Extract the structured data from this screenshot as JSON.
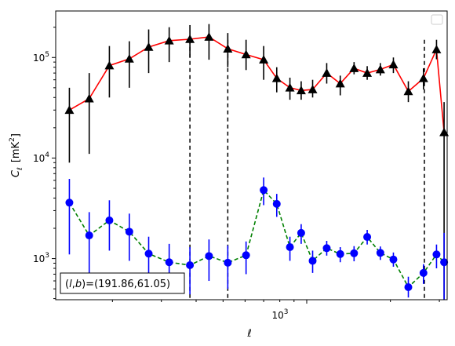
{
  "chart_data": {
    "type": "line",
    "xlabel": "ℓ",
    "ylabel_main": "C",
    "ylabel_sub": "ℓ",
    "ylabel_unit_pre": "[mK",
    "ylabel_unit_sup": "2",
    "ylabel_unit_post": "]",
    "xscale": "log",
    "yscale": "log",
    "xlim": [
      125,
      3200
    ],
    "ylim": [
      390,
      290000
    ],
    "x_major_ticks": [
      {
        "value": 1000,
        "base": "10",
        "exp": "3"
      }
    ],
    "y_major_ticks": [
      {
        "value": 1000,
        "base": "10",
        "exp": "3"
      },
      {
        "value": 10000,
        "base": "10",
        "exp": "4"
      },
      {
        "value": 100000,
        "base": "10",
        "exp": "5"
      }
    ],
    "vlines": [
      380,
      520,
      2650
    ],
    "legend": {
      "placement": "top-right",
      "entries": []
    },
    "annotation": {
      "pre": "(",
      "var1": "l",
      "comma": ",",
      "var2": "b",
      "post": ")=(191.86,61.05)"
    },
    "series": [
      {
        "color": "#ff0000",
        "line_style": "solid",
        "marker": "triangle",
        "marker_color": "#000000",
        "errorbar_color": "#000000",
        "points": [
          {
            "x": 140,
            "y": 30000,
            "lo": 9000,
            "hi": 50000
          },
          {
            "x": 165,
            "y": 39000,
            "lo": 11000,
            "hi": 70000
          },
          {
            "x": 195,
            "y": 83000,
            "lo": 40000,
            "hi": 130000
          },
          {
            "x": 230,
            "y": 97000,
            "lo": 50000,
            "hi": 145000
          },
          {
            "x": 270,
            "y": 127000,
            "lo": 70000,
            "hi": 190000
          },
          {
            "x": 320,
            "y": 147000,
            "lo": 90000,
            "hi": 200000
          },
          {
            "x": 380,
            "y": 152000,
            "lo": 100000,
            "hi": 210000
          },
          {
            "x": 445,
            "y": 160000,
            "lo": 95000,
            "hi": 215000
          },
          {
            "x": 520,
            "y": 122000,
            "lo": 80000,
            "hi": 175000
          },
          {
            "x": 605,
            "y": 107000,
            "lo": 75000,
            "hi": 150000
          },
          {
            "x": 700,
            "y": 95000,
            "lo": 60000,
            "hi": 130000
          },
          {
            "x": 780,
            "y": 62000,
            "lo": 45000,
            "hi": 80000
          },
          {
            "x": 870,
            "y": 50000,
            "lo": 38000,
            "hi": 63000
          },
          {
            "x": 955,
            "y": 47000,
            "lo": 38000,
            "hi": 58000
          },
          {
            "x": 1050,
            "y": 48000,
            "lo": 40000,
            "hi": 60000
          },
          {
            "x": 1180,
            "y": 70000,
            "lo": 55000,
            "hi": 88000
          },
          {
            "x": 1320,
            "y": 55000,
            "lo": 42000,
            "hi": 66000
          },
          {
            "x": 1480,
            "y": 78000,
            "lo": 68000,
            "hi": 90000
          },
          {
            "x": 1650,
            "y": 70000,
            "lo": 60000,
            "hi": 82000
          },
          {
            "x": 1840,
            "y": 76000,
            "lo": 66000,
            "hi": 88000
          },
          {
            "x": 2050,
            "y": 85000,
            "lo": 70000,
            "hi": 100000
          },
          {
            "x": 2320,
            "y": 46000,
            "lo": 36000,
            "hi": 58000
          },
          {
            "x": 2630,
            "y": 62000,
            "lo": 48000,
            "hi": 78000
          },
          {
            "x": 2930,
            "y": 120000,
            "lo": 96000,
            "hi": 150000
          },
          {
            "x": 3120,
            "y": 18000,
            "lo": 300,
            "hi": 36000
          }
        ]
      },
      {
        "color": "#008000",
        "line_style": "dashed",
        "marker": "circle",
        "marker_color": "#0000ff",
        "errorbar_color": "#0000ff",
        "points": [
          {
            "x": 140,
            "y": 3600,
            "lo": 1100,
            "hi": 6200
          },
          {
            "x": 165,
            "y": 1700,
            "lo": 600,
            "hi": 2900
          },
          {
            "x": 195,
            "y": 2400,
            "lo": 1200,
            "hi": 3800
          },
          {
            "x": 230,
            "y": 1850,
            "lo": 950,
            "hi": 2800
          },
          {
            "x": 270,
            "y": 1120,
            "lo": 570,
            "hi": 1650
          },
          {
            "x": 320,
            "y": 920,
            "lo": 480,
            "hi": 1400
          },
          {
            "x": 380,
            "y": 860,
            "lo": 440,
            "hi": 1300
          },
          {
            "x": 445,
            "y": 1060,
            "lo": 600,
            "hi": 1550
          },
          {
            "x": 520,
            "y": 910,
            "lo": 500,
            "hi": 1350
          },
          {
            "x": 605,
            "y": 1080,
            "lo": 700,
            "hi": 1480
          },
          {
            "x": 700,
            "y": 4800,
            "lo": 3400,
            "hi": 6400
          },
          {
            "x": 780,
            "y": 3500,
            "lo": 2600,
            "hi": 4400
          },
          {
            "x": 870,
            "y": 1300,
            "lo": 950,
            "hi": 1650
          },
          {
            "x": 955,
            "y": 1800,
            "lo": 1400,
            "hi": 2200
          },
          {
            "x": 1050,
            "y": 950,
            "lo": 720,
            "hi": 1200
          },
          {
            "x": 1180,
            "y": 1270,
            "lo": 1070,
            "hi": 1500
          },
          {
            "x": 1320,
            "y": 1110,
            "lo": 920,
            "hi": 1300
          },
          {
            "x": 1480,
            "y": 1130,
            "lo": 940,
            "hi": 1330
          },
          {
            "x": 1650,
            "y": 1640,
            "lo": 1380,
            "hi": 1930
          },
          {
            "x": 1840,
            "y": 1140,
            "lo": 970,
            "hi": 1320
          },
          {
            "x": 2050,
            "y": 980,
            "lo": 830,
            "hi": 1150
          },
          {
            "x": 2320,
            "y": 520,
            "lo": 410,
            "hi": 660
          },
          {
            "x": 2630,
            "y": 720,
            "lo": 560,
            "hi": 880
          },
          {
            "x": 2930,
            "y": 1100,
            "lo": 800,
            "hi": 1380
          },
          {
            "x": 3120,
            "y": 920,
            "lo": 390,
            "hi": 1800
          }
        ]
      }
    ]
  }
}
